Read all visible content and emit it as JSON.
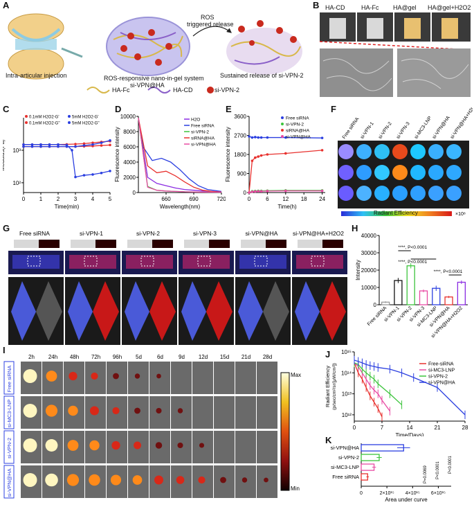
{
  "panels": {
    "A": {
      "label": "A",
      "caption_left": "Intra-articular injection",
      "caption_mid_1": "ROS-responsive nano-in-gel system",
      "caption_mid_2": "si-VPN@HA",
      "caption_right": "Sustained release of si-VPN-2",
      "arrow_label_1": "ROS",
      "arrow_label_2": "triggered release",
      "legend": [
        "HA-Fc",
        "HA-CD",
        "si-VPN-2"
      ]
    },
    "B": {
      "label": "B",
      "vials": [
        "HA-CD",
        "HA-Fc",
        "HA@gel",
        "HA@gel+H2O2"
      ]
    },
    "C": {
      "label": "C",
      "ylabel": "Modulus(Pa)",
      "xlabel": "Time(min)",
      "legend": [
        "0.1mM H2O2-G'",
        "0.1mM H2O2-G''",
        "5mM H2O2-G'",
        "5mM H2O2-G''"
      ],
      "yticks": [
        "10³",
        "10²"
      ],
      "xticks": [
        "0",
        "1",
        "2",
        "3",
        "4",
        "5"
      ]
    },
    "D": {
      "label": "D",
      "ylabel": "Fluorescence intensity",
      "xlabel": "Wavelength(nm)",
      "yticks": [
        "10000",
        "8000",
        "6000",
        "4000",
        "2000",
        "0"
      ],
      "xticks": [
        "660",
        "690",
        "720"
      ],
      "legend": [
        "H2O",
        "Free siRNA",
        "si-VPN-2",
        "siRNA@HA",
        "si-VPN@HA"
      ]
    },
    "E": {
      "label": "E",
      "ylabel": "Fluorescence intensity",
      "xlabel": "Time(h)",
      "yticks": [
        "3600",
        "2700",
        "1800",
        "900",
        "0"
      ],
      "xticks": [
        "0",
        "6",
        "12",
        "18",
        "24"
      ],
      "legend": [
        "Free siRNA",
        "si-VPN-2",
        "siRNA@HA",
        "si-VPN@HA"
      ]
    },
    "F": {
      "label": "F",
      "columns": [
        "Free siRNA",
        "si-VPN-1",
        "si-VPN-2",
        "si-VPN-3",
        "si-MC3-LNP",
        "si-VPN@HA",
        "si-VPN@HA+H2O2"
      ],
      "colorbar_ticks": [
        "0.4",
        "0.6",
        "0.8",
        "1.0",
        "1.2",
        "1.4"
      ],
      "colorbar_unit": "×10⁸",
      "colorbar_label": "Radiant Efficiency"
    },
    "G": {
      "label": "G",
      "columns": [
        "Free siRNA",
        "si-VPN-1",
        "si-VPN-2",
        "si-VPN-3",
        "si-VPN@HA",
        "si-VPN@HA+H2O2"
      ]
    },
    "H": {
      "label": "H",
      "ylabel": "Intensity",
      "yticks": [
        "40000",
        "30000",
        "20000",
        "10000",
        "0"
      ],
      "categories": [
        "Free siRNA",
        "si-VPN-1",
        "si-VPN-2",
        "si-VPN-3",
        "si-MC3-LNP",
        "si-VPN@HA",
        "si-VPN@HA+H2O2"
      ],
      "sig": [
        "****, P<0.0001",
        "****, P<0.0001",
        "****, P<0.0001"
      ]
    },
    "I": {
      "label": "I",
      "timepoints": [
        "2h",
        "24h",
        "48h",
        "72h",
        "96h",
        "5d",
        "6d",
        "9d",
        "12d",
        "15d",
        "21d",
        "28d"
      ],
      "rows": [
        "Free siRNA",
        "si-MC3-LNP",
        "si-VPN-2",
        "si-VPN@HA"
      ],
      "scale_max": "Max",
      "scale_min": "Min"
    },
    "J": {
      "label": "J",
      "ylabel_1": "Radiant Efficiency",
      "ylabel_2": "(p/sec/cm²/sr/[μW/cm²])",
      "xlabel": "Time(Days)",
      "yticks": [
        "10¹⁵",
        "10¹⁴",
        "10¹³",
        "10¹²"
      ],
      "xticks": [
        "0",
        "7",
        "14",
        "21",
        "28"
      ],
      "legend": [
        "Free-siRNA",
        "si-MC3-LNP",
        "si-VPN-2",
        "si-VPN@HA"
      ]
    },
    "K": {
      "label": "K",
      "xlabel": "Area under curve",
      "xticks": [
        "0",
        "2×10¹⁵",
        "4×10¹⁵",
        "6×10¹⁵"
      ],
      "categories": [
        "si-VPN@HA",
        "si-VPN-2",
        "si-MC3-LNP",
        "Free siRNA"
      ],
      "sig": [
        "P=0.0069",
        "P<0.0001",
        "P<0.0001"
      ]
    }
  },
  "chart_data": [
    {
      "type": "line",
      "panel": "C",
      "series": [
        {
          "name": "0.1mM H2O2-G'",
          "x": [
            0,
            0.5,
            1,
            1.5,
            2,
            2.5,
            3,
            3.5,
            4,
            4.5,
            5
          ],
          "values": [
            1500,
            1500,
            1500,
            1500,
            1500,
            1520,
            1550,
            1600,
            1700,
            1800,
            1900
          ],
          "color": "#e8312e"
        },
        {
          "name": "0.1mM H2O2-G''",
          "x": [
            0,
            0.5,
            1,
            1.5,
            2,
            2.5,
            3,
            3.5,
            4,
            4.5,
            5
          ],
          "values": [
            1300,
            1300,
            1300,
            1300,
            1300,
            1300,
            1300,
            1320,
            1350,
            1400,
            1450
          ],
          "color": "#e8312e"
        },
        {
          "name": "5mM H2O2-G'",
          "x": [
            0,
            0.5,
            1,
            1.5,
            2,
            2.5,
            2.8,
            3,
            3.5,
            4,
            4.5,
            5
          ],
          "values": [
            1500,
            1500,
            1500,
            1500,
            1500,
            1450,
            1000,
            150,
            170,
            180,
            200,
            230
          ],
          "color": "#2b3fe0"
        },
        {
          "name": "5mM H2O2-G''",
          "x": [
            0,
            0.5,
            1,
            1.5,
            2,
            2.5,
            3,
            3.5,
            4,
            4.5,
            5
          ],
          "values": [
            1300,
            1300,
            1300,
            1300,
            1300,
            1300,
            1300,
            1400,
            1500,
            1700,
            2000
          ],
          "color": "#2b3fe0"
        }
      ],
      "ylog": true,
      "ylim": [
        50,
        10000
      ],
      "xlim": [
        0,
        5
      ]
    },
    {
      "type": "line",
      "panel": "D",
      "series": [
        {
          "name": "H2O",
          "x": [
            630,
            640,
            650,
            660,
            670,
            680,
            690,
            700,
            710,
            720
          ],
          "values": [
            9800,
            2000,
            1200,
            900,
            600,
            400,
            300,
            200,
            150,
            100
          ],
          "color": "#8a2be2"
        },
        {
          "name": "Free siRNA",
          "x": [
            630,
            635,
            645,
            655,
            665,
            675,
            685,
            695,
            705,
            720
          ],
          "values": [
            9800,
            6000,
            4200,
            4500,
            4000,
            3000,
            1800,
            900,
            400,
            150
          ],
          "color": "#2b3fe0"
        },
        {
          "name": "si-VPN-2",
          "x": [
            630,
            640,
            650,
            660,
            670,
            680,
            690,
            700,
            720
          ],
          "values": [
            9800,
            800,
            300,
            200,
            150,
            100,
            80,
            60,
            50
          ],
          "color": "#3cc43c"
        },
        {
          "name": "siRNA@HA",
          "x": [
            630,
            640,
            650,
            660,
            670,
            680,
            690,
            700,
            710,
            720
          ],
          "values": [
            9800,
            3500,
            2600,
            2800,
            2200,
            1400,
            700,
            300,
            150,
            80
          ],
          "color": "#e8312e"
        },
        {
          "name": "si-VPN@HA",
          "x": [
            630,
            640,
            650,
            660,
            670,
            680,
            690,
            700,
            720
          ],
          "values": [
            9800,
            700,
            300,
            200,
            150,
            100,
            80,
            60,
            50
          ],
          "color": "#e84aa3"
        }
      ],
      "xlim": [
        630,
        720
      ],
      "ylim": [
        0,
        10000
      ]
    },
    {
      "type": "line",
      "panel": "E",
      "series": [
        {
          "name": "Free siRNA",
          "x": [
            0,
            1,
            2,
            3,
            4,
            6,
            12,
            24
          ],
          "values": [
            2650,
            2600,
            2620,
            2600,
            2600,
            2600,
            2600,
            2580
          ],
          "color": "#2b3fe0"
        },
        {
          "name": "si-VPN-2",
          "x": [
            0,
            1,
            2,
            3,
            4,
            6,
            12,
            24
          ],
          "values": [
            0,
            60,
            70,
            80,
            80,
            90,
            100,
            100
          ],
          "color": "#3cc43c"
        },
        {
          "name": "siRNA@HA",
          "x": [
            0,
            1,
            2,
            3,
            4,
            6,
            12,
            24
          ],
          "values": [
            0,
            1500,
            1650,
            1700,
            1750,
            1800,
            1850,
            2000
          ],
          "color": "#e8312e"
        },
        {
          "name": "si-VPN@HA",
          "x": [
            0,
            1,
            2,
            3,
            4,
            6,
            12,
            24
          ],
          "values": [
            0,
            40,
            50,
            60,
            60,
            70,
            80,
            80
          ],
          "color": "#e84aa3"
        }
      ],
      "xlim": [
        0,
        25
      ],
      "ylim": [
        0,
        3600
      ]
    },
    {
      "type": "bar",
      "panel": "H",
      "categories": [
        "Free siRNA",
        "si-VPN-1",
        "si-VPN-2",
        "si-VPN-3",
        "si-MC3-LNP",
        "si-VPN@HA",
        "si-VPN@HA+H2O2"
      ],
      "values": [
        1500,
        14000,
        22500,
        8000,
        9500,
        4500,
        13000
      ],
      "errors": [
        500,
        1500,
        1500,
        800,
        1500,
        600,
        1000
      ],
      "colors": [
        "#999999",
        "#111111",
        "#3cc43c",
        "#e84aa3",
        "#2b3fe0",
        "#e8312e",
        "#8a2be2"
      ],
      "ylim": [
        0,
        40000
      ]
    },
    {
      "type": "line",
      "panel": "J",
      "series": [
        {
          "name": "Free-siRNA",
          "x": [
            0,
            1,
            2,
            3,
            4,
            5,
            6,
            7
          ],
          "values": [
            300000000000000.0,
            100000000000000.0,
            50000000000000.0,
            20000000000000.0,
            8000000000000.0,
            4000000000000.0,
            2000000000000.0,
            800000000000.0
          ],
          "color": "#e8312e"
        },
        {
          "name": "si-MC3-LNP",
          "x": [
            0,
            1,
            2,
            3,
            4,
            5,
            6,
            7,
            9
          ],
          "values": [
            300000000000000.0,
            200000000000000.0,
            100000000000000.0,
            50000000000000.0,
            25000000000000.0,
            15000000000000.0,
            10000000000000.0,
            5000000000000.0,
            1500000000000.0
          ],
          "color": "#e84aa3"
        },
        {
          "name": "si-VPN-2",
          "x": [
            0,
            1,
            2,
            3,
            4,
            5,
            6,
            9,
            12
          ],
          "values": [
            300000000000000.0,
            250000000000000.0,
            150000000000000.0,
            100000000000000.0,
            70000000000000.0,
            50000000000000.0,
            30000000000000.0,
            10000000000000.0,
            3000000000000.0
          ],
          "color": "#3cc43c"
        },
        {
          "name": "si-VPN@HA",
          "x": [
            0,
            1,
            2,
            3,
            4,
            5,
            6,
            9,
            12,
            15,
            21,
            28
          ],
          "values": [
            400000000000000.0,
            350000000000000.0,
            300000000000000.0,
            250000000000000.0,
            220000000000000.0,
            200000000000000.0,
            180000000000000.0,
            150000000000000.0,
            100000000000000.0,
            60000000000000.0,
            20000000000000.0,
            1000000000000.0
          ],
          "color": "#2b3fe0"
        }
      ],
      "ylog": true,
      "ylim": [
        500000000000.0,
        1000000000000000.0
      ],
      "xlim": [
        0,
        28
      ]
    },
    {
      "type": "bar",
      "panel": "K",
      "orientation": "horizontal",
      "categories": [
        "si-VPN@HA",
        "si-VPN-2",
        "si-MC3-LNP",
        "Free siRNA"
      ],
      "values": [
        3300000000000000.0,
        1400000000000000.0,
        1000000000000000.0,
        500000000000000.0
      ],
      "errors": [
        500000000000000.0,
        200000000000000.0,
        150000000000000.0,
        100000000000000.0
      ],
      "colors": [
        "#2b3fe0",
        "#3cc43c",
        "#e84aa3",
        "#e8312e"
      ],
      "xlim": [
        0,
        7000000000000000.0
      ]
    }
  ]
}
